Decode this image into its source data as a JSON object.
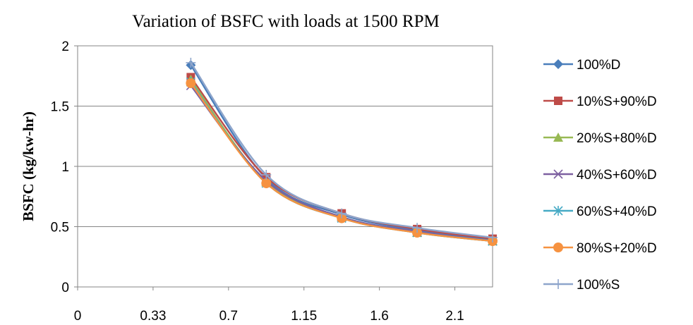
{
  "chart_data": {
    "type": "line",
    "title": "Variation of BSFC with loads at 1500 RPM",
    "xlabel": "",
    "ylabel": "BSFC (kg/kw-hr)",
    "x_tick_labels": [
      "0",
      "0.33",
      "0.7",
      "1.15",
      "1.6",
      "2.1"
    ],
    "categories": [
      "0.33",
      "0.7",
      "1.15",
      "1.6",
      "2.1"
    ],
    "ylim": [
      0,
      2
    ],
    "y_ticks": [
      0,
      0.5,
      1,
      1.5,
      2
    ],
    "y_tick_labels": [
      "0",
      "0.5",
      "1",
      "1.5",
      "2"
    ],
    "grid": "horizontal",
    "legend_position": "right",
    "series": [
      {
        "name": "100%D",
        "values": [
          1.84,
          0.9,
          0.6,
          0.47,
          0.39
        ],
        "color": "#4A7EBB",
        "marker": "diamond"
      },
      {
        "name": "10%S+90%D",
        "values": [
          1.74,
          0.91,
          0.61,
          0.48,
          0.4
        ],
        "color": "#BE4B48",
        "marker": "square"
      },
      {
        "name": "20%S+80%D",
        "values": [
          1.72,
          0.87,
          0.58,
          0.45,
          0.38
        ],
        "color": "#98B954",
        "marker": "triangle"
      },
      {
        "name": "40%S+60%D",
        "values": [
          1.67,
          0.88,
          0.58,
          0.46,
          0.38
        ],
        "color": "#7D60A0",
        "marker": "x"
      },
      {
        "name": "60%S+40%D",
        "values": [
          1.7,
          0.86,
          0.57,
          0.45,
          0.38
        ],
        "color": "#46AAC5",
        "marker": "star"
      },
      {
        "name": "80%S+20%D",
        "values": [
          1.69,
          0.86,
          0.57,
          0.45,
          0.38
        ],
        "color": "#F69240",
        "marker": "circle"
      },
      {
        "name": "100%S",
        "values": [
          1.86,
          0.93,
          0.61,
          0.49,
          0.41
        ],
        "color": "#8EA5CB",
        "marker": "plus"
      }
    ]
  }
}
